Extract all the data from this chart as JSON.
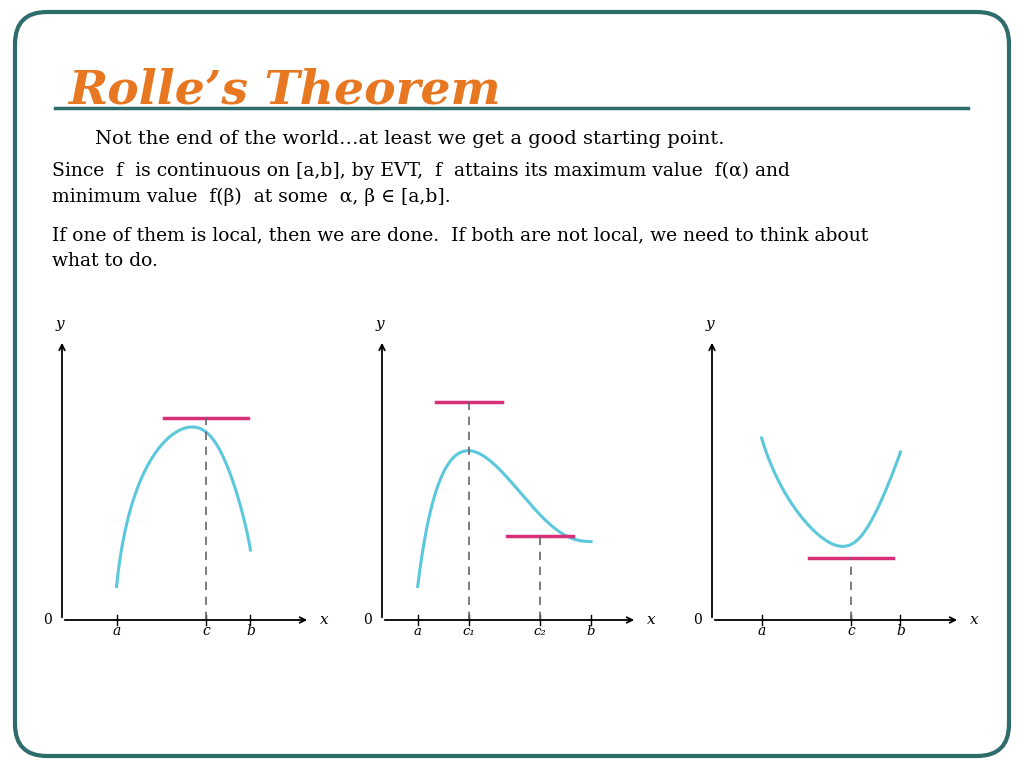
{
  "title": "Rolle’s Theorem",
  "title_color": "#E87722",
  "bg_color": "#FFFFFF",
  "border_color": "#2E6B6B",
  "subtitle": "Not the end of the world…at least we get a good starting point.",
  "line1": "Since  f  is continuous on [a,b], by EVT,  f  attains its maximum value  f(α) and",
  "line2": "minimum value  f(β)  at some  α, β ∈ [a,b].",
  "line3": "If one of them is local, then we are done.  If both are not local, we need to think about",
  "line4": "what to do.",
  "curve_color": "#5BC8DC",
  "tangent_color": "#D63079",
  "dashed_color": "#666666"
}
